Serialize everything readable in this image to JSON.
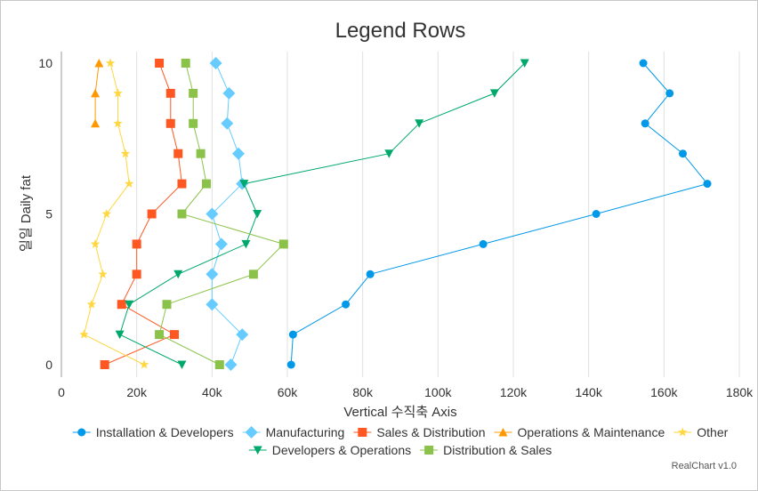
{
  "chart_data": {
    "type": "line",
    "orientation": "horizontal-values",
    "title": "Legend Rows",
    "xlabel": "Vertical 수직축 Axis",
    "ylabel": "일일 Daily fat",
    "xlim": [
      0,
      180000
    ],
    "ylim": [
      0,
      10
    ],
    "x_ticks": [
      {
        "value": 0,
        "label": "0"
      },
      {
        "value": 20000,
        "label": "20k"
      },
      {
        "value": 40000,
        "label": "40k"
      },
      {
        "value": 60000,
        "label": "60k"
      },
      {
        "value": 80000,
        "label": "80k"
      },
      {
        "value": 100000,
        "label": "100k"
      },
      {
        "value": 120000,
        "label": "120k"
      },
      {
        "value": 140000,
        "label": "140k"
      },
      {
        "value": 160000,
        "label": "160k"
      },
      {
        "value": 180000,
        "label": "180k"
      }
    ],
    "y_ticks": [
      {
        "value": 0,
        "label": "0"
      },
      {
        "value": 5,
        "label": "5"
      },
      {
        "value": 10,
        "label": "10"
      }
    ],
    "grid": "vertical",
    "legend_position": "bottom",
    "series": [
      {
        "name": "Installation & Developers",
        "color": "#0098e8",
        "marker": "circle",
        "points": [
          [
            61000,
            0
          ],
          [
            61500,
            1
          ],
          [
            75500,
            2
          ],
          [
            82000,
            3
          ],
          [
            112000,
            4
          ],
          [
            142000,
            5
          ],
          [
            171500,
            6
          ],
          [
            165000,
            7
          ],
          [
            155000,
            8
          ],
          [
            161500,
            9
          ],
          [
            154500,
            10
          ]
        ]
      },
      {
        "name": "Manufacturing",
        "color": "#66ccff",
        "marker": "diamond",
        "points": [
          [
            45000,
            0
          ],
          [
            48000,
            1
          ],
          [
            40000,
            2
          ],
          [
            40000,
            3
          ],
          [
            42500,
            4
          ],
          [
            40000,
            5
          ],
          [
            48000,
            6
          ],
          [
            47000,
            7
          ],
          [
            44000,
            8
          ],
          [
            44500,
            9
          ],
          [
            41000,
            10
          ]
        ]
      },
      {
        "name": "Sales & Distribution",
        "color": "#ff5722",
        "marker": "square",
        "points": [
          [
            11500,
            0
          ],
          [
            30000,
            1
          ],
          [
            16000,
            2
          ],
          [
            20000,
            3
          ],
          [
            20000,
            4
          ],
          [
            24000,
            5
          ],
          [
            32000,
            6
          ],
          [
            31000,
            7
          ],
          [
            29000,
            8
          ],
          [
            29000,
            9
          ],
          [
            26000,
            10
          ]
        ]
      },
      {
        "name": "Operations & Maintenance",
        "color": "#ff9800",
        "marker": "triangle",
        "points": [
          [
            9000,
            8
          ],
          [
            9000,
            9
          ],
          [
            10000,
            10
          ]
        ]
      },
      {
        "name": "Other",
        "color": "#ffd740",
        "marker": "star",
        "points": [
          [
            22000,
            0
          ],
          [
            6000,
            1
          ],
          [
            8000,
            2
          ],
          [
            11000,
            3
          ],
          [
            9000,
            4
          ],
          [
            12000,
            5
          ],
          [
            18000,
            6
          ],
          [
            17000,
            7
          ],
          [
            15000,
            8
          ],
          [
            15000,
            9
          ],
          [
            13000,
            10
          ]
        ]
      },
      {
        "name": "Developers & Operations",
        "color": "#00a86b",
        "marker": "triangle-down",
        "points": [
          [
            32000,
            0
          ],
          [
            15500,
            1
          ],
          [
            18000,
            2
          ],
          [
            31000,
            3
          ],
          [
            49000,
            4
          ],
          [
            52000,
            5
          ],
          [
            48500,
            6
          ],
          [
            87000,
            7
          ],
          [
            95000,
            8
          ],
          [
            115000,
            9
          ],
          [
            123000,
            10
          ]
        ]
      },
      {
        "name": "Distribution & Sales",
        "color": "#8bc34a",
        "marker": "square",
        "points": [
          [
            42000,
            0
          ],
          [
            26000,
            1
          ],
          [
            28000,
            2
          ],
          [
            51000,
            3
          ],
          [
            59000,
            4
          ],
          [
            32000,
            5
          ],
          [
            38500,
            6
          ],
          [
            37000,
            7
          ],
          [
            35000,
            8
          ],
          [
            35000,
            9
          ],
          [
            33000,
            10
          ]
        ]
      }
    ]
  },
  "credit": "RealChart v1.0"
}
